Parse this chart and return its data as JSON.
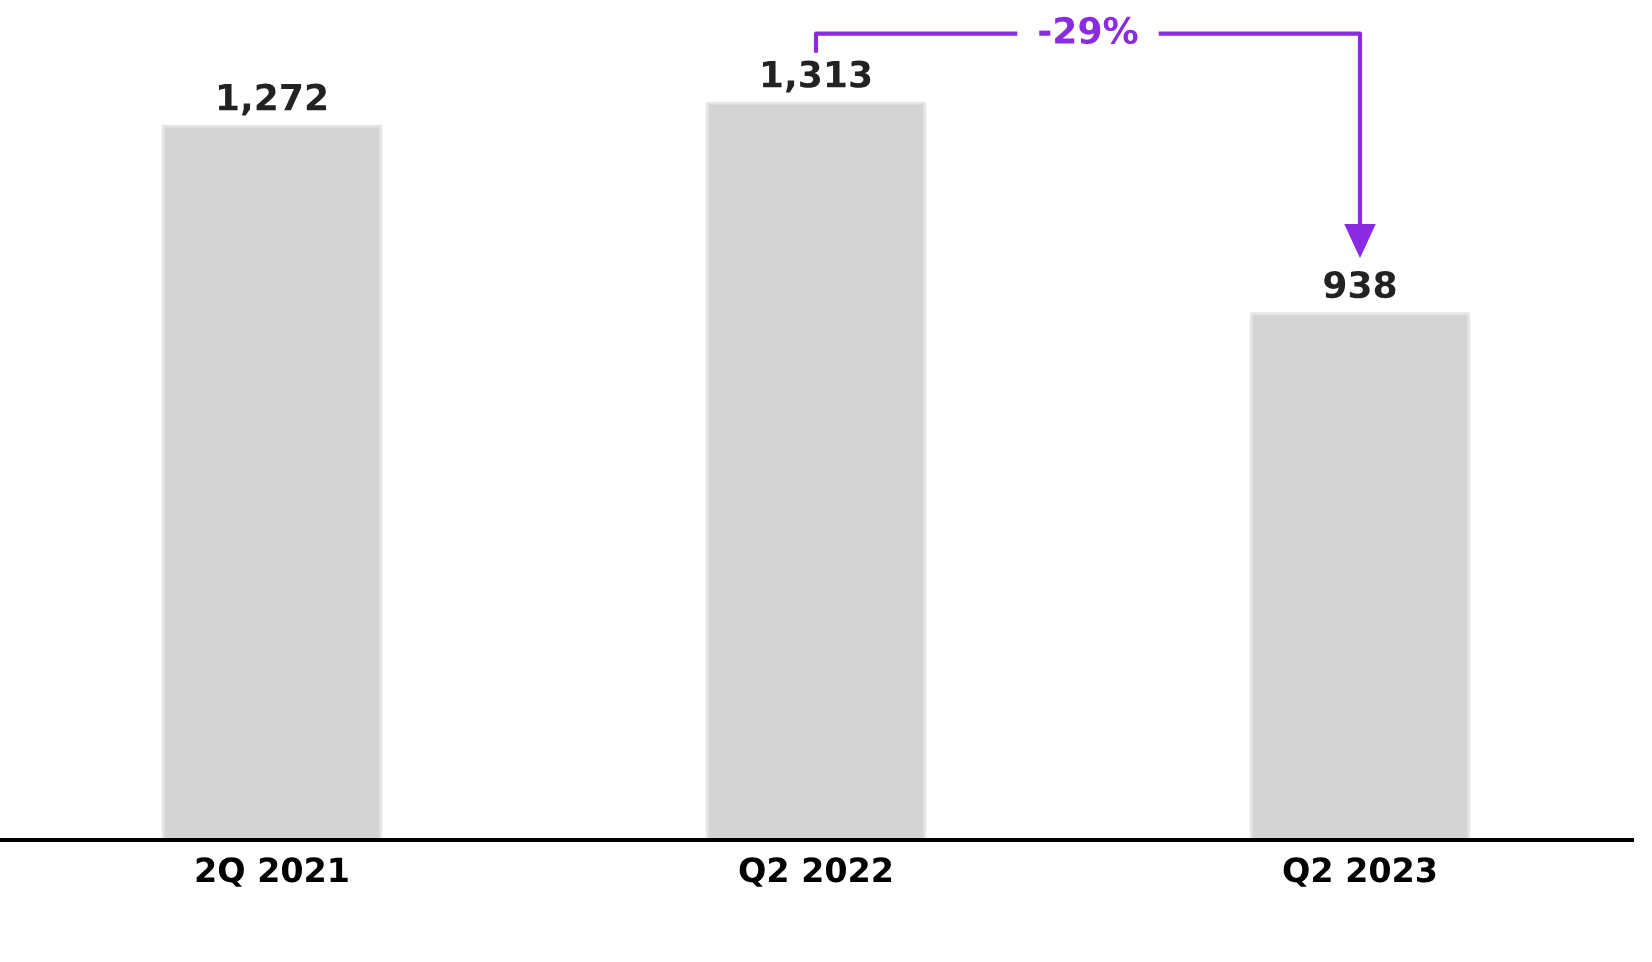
{
  "chart_data": {
    "type": "bar",
    "categories": [
      "2Q 2021",
      "Q2 2022",
      "Q2 2023"
    ],
    "values": [
      1272,
      1313,
      938
    ],
    "value_labels": [
      "1,272",
      "1,313",
      "938"
    ],
    "color": "#d4d4d4",
    "grid": false,
    "legend": false,
    "tick_labels": "x",
    "annotations": [
      "-29%"
    ]
  }
}
